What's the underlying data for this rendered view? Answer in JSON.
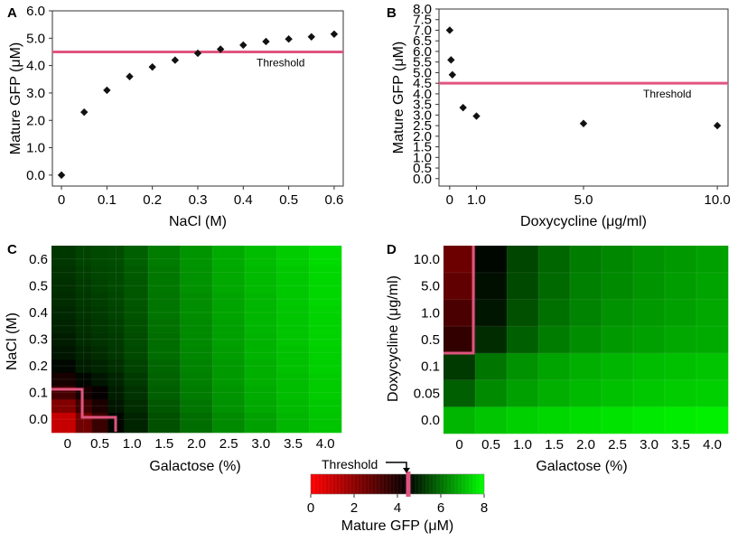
{
  "colors": {
    "threshold": "#e0557f",
    "marker": "#111111",
    "axis": "#333333",
    "gfp_low": "#ff0000",
    "gfp_mid": "#000000",
    "gfp_high": "#00ff00"
  },
  "chart_data": [
    {
      "panel": "A",
      "type": "scatter",
      "xlabel": "NaCl (M)",
      "ylabel": "Mature GFP (μM)",
      "xlim": [
        -0.02,
        0.62
      ],
      "ylim": [
        -0.4,
        6.0
      ],
      "xticks": [
        0,
        0.1,
        0.2,
        0.3,
        0.4,
        0.5,
        0.6
      ],
      "xtick_labels": [
        "0",
        "0.1",
        "0.2",
        "0.3",
        "0.4",
        "0.5",
        "0.6"
      ],
      "yticks": [
        0,
        1,
        2,
        3,
        4,
        5,
        6
      ],
      "ytick_labels": [
        "0.0",
        "1.0",
        "2.0",
        "3.0",
        "4.0",
        "5.0",
        "6.0"
      ],
      "x": [
        0,
        0.05,
        0.1,
        0.15,
        0.2,
        0.25,
        0.3,
        0.35,
        0.4,
        0.45,
        0.5,
        0.55,
        0.6
      ],
      "y": [
        0.0,
        2.3,
        3.1,
        3.6,
        3.95,
        4.2,
        4.45,
        4.6,
        4.75,
        4.88,
        4.97,
        5.05,
        5.15
      ],
      "threshold": 4.5,
      "threshold_label": "Threshold"
    },
    {
      "panel": "B",
      "type": "scatter",
      "xlabel": "Doxycycline (μg/ml)",
      "ylabel": "Mature GFP (μM)",
      "xlim": [
        -0.4,
        10.4
      ],
      "ylim": [
        -0.35,
        8.0
      ],
      "xticks": [
        0,
        1,
        5,
        10
      ],
      "xtick_labels": [
        "0",
        "1.0",
        "5.0",
        "10.0"
      ],
      "yticks": [
        0,
        0.5,
        1,
        1.5,
        2,
        2.5,
        3,
        3.5,
        4,
        4.5,
        5,
        5.5,
        6,
        6.5,
        7,
        7.5,
        8
      ],
      "ytick_labels": [
        "0.0",
        "0.5",
        "1.0",
        "1.5",
        "2.0",
        "2.5",
        "3.0",
        "3.5",
        "4.0",
        "4.5",
        "5.0",
        "5.5",
        "6.0",
        "6.5",
        "7.0",
        "7.5",
        "8.0"
      ],
      "x": [
        0,
        0.05,
        0.1,
        0.5,
        1.0,
        5.0,
        10.0
      ],
      "y": [
        7.0,
        5.6,
        4.9,
        3.35,
        2.95,
        2.6,
        2.5
      ],
      "threshold": 4.5,
      "threshold_label": "Threshold"
    },
    {
      "panel": "C",
      "type": "heatmap",
      "xlabel": "Galactose (%)",
      "ylabel": "NaCl (M)",
      "x_categories": [
        "0",
        "0.5",
        "1.0",
        "1.5",
        "2.0",
        "2.5",
        "3.0",
        "3.5",
        "4.0"
      ],
      "y_categories": [
        "0.0",
        "0.1",
        "0.2",
        "0.3",
        "0.4",
        "0.5",
        "0.6"
      ],
      "y_tick_labels": [
        "0.0",
        "0.1",
        "0.2",
        "0.3",
        "0.4",
        "0.5",
        "0.6"
      ],
      "x_fine": [
        0,
        0.25,
        0.5,
        0.75,
        1.0,
        1.5,
        2.0,
        2.5,
        3.0,
        3.5,
        4.0
      ],
      "y_fine": [
        0.0,
        0.05,
        0.1,
        0.15,
        0.2,
        0.25,
        0.3,
        0.35,
        0.4,
        0.45,
        0.5,
        0.55,
        0.6
      ],
      "values": [
        [
          1.0,
          2.5,
          3.5,
          4.6,
          5.0,
          5.6,
          6.0,
          6.4,
          6.7,
          7.0,
          7.2
        ],
        [
          2.2,
          3.4,
          4.0,
          4.8,
          5.1,
          5.7,
          6.1,
          6.5,
          6.8,
          7.05,
          7.25
        ],
        [
          3.3,
          4.1,
          4.4,
          4.9,
          5.2,
          5.8,
          6.2,
          6.55,
          6.85,
          7.1,
          7.3
        ],
        [
          4.1,
          4.6,
          4.8,
          5.0,
          5.3,
          5.85,
          6.25,
          6.6,
          6.9,
          7.1,
          7.3
        ],
        [
          4.6,
          4.9,
          5.0,
          5.15,
          5.4,
          5.9,
          6.3,
          6.6,
          6.9,
          7.15,
          7.35
        ],
        [
          4.8,
          5.0,
          5.1,
          5.25,
          5.5,
          6.0,
          6.35,
          6.65,
          6.95,
          7.15,
          7.35
        ],
        [
          4.9,
          5.1,
          5.2,
          5.3,
          5.55,
          6.0,
          6.4,
          6.7,
          6.95,
          7.2,
          7.4
        ],
        [
          5.0,
          5.15,
          5.25,
          5.35,
          5.6,
          6.05,
          6.4,
          6.7,
          7.0,
          7.2,
          7.4
        ],
        [
          5.05,
          5.2,
          5.3,
          5.4,
          5.65,
          6.1,
          6.45,
          6.75,
          7.0,
          7.2,
          7.4
        ],
        [
          5.1,
          5.25,
          5.35,
          5.45,
          5.7,
          6.1,
          6.45,
          6.75,
          7.0,
          7.25,
          7.45
        ],
        [
          5.15,
          5.3,
          5.4,
          5.5,
          5.7,
          6.15,
          6.5,
          6.8,
          7.05,
          7.25,
          7.45
        ],
        [
          5.2,
          5.35,
          5.45,
          5.5,
          5.75,
          6.15,
          6.5,
          6.8,
          7.05,
          7.25,
          7.45
        ],
        [
          5.25,
          5.4,
          5.5,
          5.55,
          5.8,
          6.2,
          6.55,
          6.85,
          7.1,
          7.3,
          7.5
        ]
      ],
      "threshold_boundary": "cells below 4.5 μM (low NaCl, low galactose) outlined"
    },
    {
      "panel": "D",
      "type": "heatmap",
      "xlabel": "Galactose (%)",
      "ylabel": "Doxycycline (μg/ml)",
      "x_categories": [
        "0",
        "0.5",
        "1.0",
        "1.5",
        "2.0",
        "2.5",
        "3.0",
        "3.5",
        "4.0"
      ],
      "y_categories": [
        "0.0",
        "0.05",
        "0.1",
        "0.5",
        "1.0",
        "5.0",
        "10.0"
      ],
      "y_tick_labels": [
        "0.0",
        "0.05",
        "0.1",
        "0.5",
        "1.0",
        "5.0",
        "10.0"
      ],
      "values": [
        [
          7.0,
          7.2,
          7.35,
          7.45,
          7.55,
          7.6,
          7.7,
          7.75,
          7.8
        ],
        [
          5.8,
          6.4,
          6.7,
          6.9,
          7.05,
          7.15,
          7.25,
          7.3,
          7.35
        ],
        [
          5.3,
          6.1,
          6.5,
          6.75,
          6.9,
          7.0,
          7.1,
          7.15,
          7.2
        ],
        [
          3.6,
          5.1,
          5.8,
          6.2,
          6.45,
          6.6,
          6.7,
          6.8,
          6.85
        ],
        [
          3.2,
          4.8,
          5.6,
          6.05,
          6.3,
          6.5,
          6.6,
          6.7,
          6.8
        ],
        [
          2.8,
          4.7,
          5.5,
          5.95,
          6.25,
          6.4,
          6.55,
          6.65,
          6.75
        ],
        [
          2.6,
          4.6,
          5.45,
          5.9,
          6.2,
          6.35,
          6.5,
          6.6,
          6.7
        ]
      ],
      "threshold_boundary": "galactose 0 column at doxycycline ≥ 0.5 outlined"
    },
    {
      "panel": "colorbar",
      "type": "colorbar",
      "title": "Mature GFP (μM)",
      "vmin": 0,
      "vmax": 8,
      "ticks": [
        0,
        2,
        4,
        6,
        8
      ],
      "tick_labels": [
        "0",
        "2",
        "4",
        "6",
        "8"
      ],
      "threshold": 4.5,
      "threshold_label": "Threshold"
    }
  ],
  "panel_labels": [
    "A",
    "B",
    "C",
    "D"
  ]
}
